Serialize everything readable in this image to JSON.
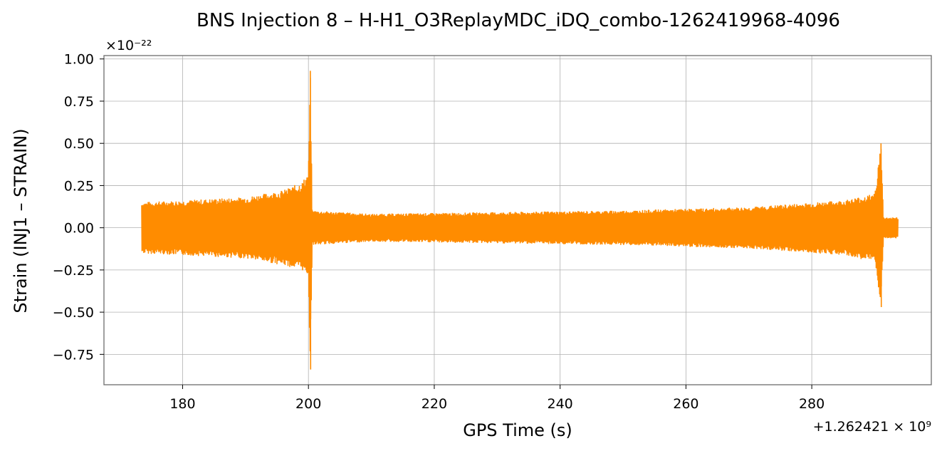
{
  "chart_data": {
    "type": "line",
    "title": "BNS Injection 8 – H-H1_O3ReplayMDC_iDQ_combo-1262419968-4096",
    "xlabel": "GPS Time (s)",
    "ylabel": "Strain (INJ1 – STRAIN)",
    "x_offset_label": "+1.262421 × 10⁹",
    "y_scale_label": "×10⁻²²",
    "xlim": [
      167.5,
      299
    ],
    "ylim": [
      -0.93,
      1.02
    ],
    "x_ticks": [
      180,
      200,
      220,
      240,
      260,
      280
    ],
    "x_tick_labels": [
      "180",
      "200",
      "220",
      "240",
      "260",
      "280"
    ],
    "y_ticks": [
      1.0,
      0.75,
      0.5,
      0.25,
      0.0,
      -0.25,
      -0.5,
      -0.75
    ],
    "y_tick_labels": [
      "1.00",
      "0.75",
      "0.50",
      "0.25",
      "0.00",
      "−0.25",
      "−0.50",
      "−0.75"
    ],
    "grid": true,
    "color": "#ff8c00",
    "series": [
      {
        "data_range": [
          173.5,
          293.7
        ],
        "envelope": [
          {
            "x": 173.5,
            "upper": 0.15,
            "lower": -0.15
          },
          {
            "x": 180,
            "upper": 0.16,
            "lower": -0.16
          },
          {
            "x": 190,
            "upper": 0.18,
            "lower": -0.18
          },
          {
            "x": 196,
            "upper": 0.22,
            "lower": -0.22
          },
          {
            "x": 199,
            "upper": 0.27,
            "lower": -0.25
          },
          {
            "x": 200.0,
            "upper": 0.33,
            "lower": -0.28
          },
          {
            "x": 200.3,
            "upper": 0.93,
            "lower": -0.84
          },
          {
            "x": 200.6,
            "upper": 0.1,
            "lower": -0.1
          },
          {
            "x": 210,
            "upper": 0.08,
            "lower": -0.08
          },
          {
            "x": 230,
            "upper": 0.09,
            "lower": -0.09
          },
          {
            "x": 250,
            "upper": 0.1,
            "lower": -0.1
          },
          {
            "x": 270,
            "upper": 0.12,
            "lower": -0.12
          },
          {
            "x": 285,
            "upper": 0.16,
            "lower": -0.16
          },
          {
            "x": 290,
            "upper": 0.2,
            "lower": -0.2
          },
          {
            "x": 291.0,
            "upper": 0.5,
            "lower": -0.47
          },
          {
            "x": 291.4,
            "upper": 0.06,
            "lower": -0.06
          },
          {
            "x": 293.7,
            "upper": 0.06,
            "lower": -0.06
          }
        ]
      }
    ]
  }
}
